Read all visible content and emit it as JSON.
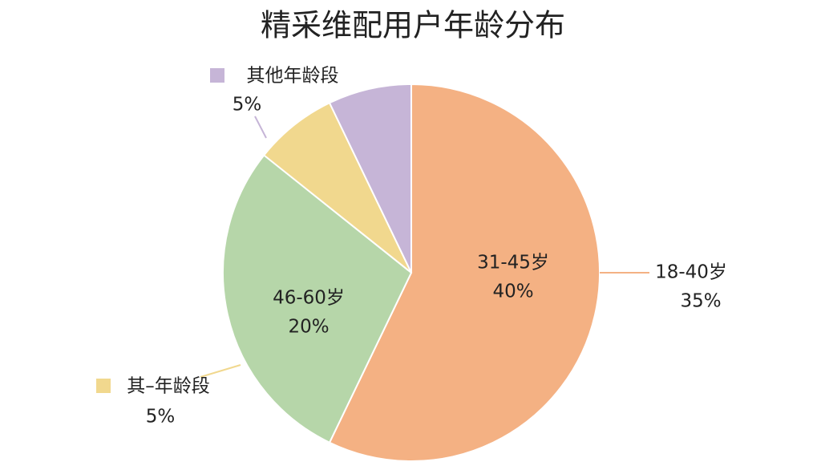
{
  "chart_data": {
    "type": "pie",
    "title": "精采维配用户年龄分布",
    "categories": [
      "31-45岁",
      "46-60岁",
      "其–年龄段",
      "其他年龄段"
    ],
    "values": [
      40,
      20,
      5,
      5
    ],
    "value_labels": [
      "40%",
      "20%",
      "5%",
      "5%"
    ],
    "colors": [
      "#f4b183",
      "#b6d6a9",
      "#f1d88e",
      "#c6b5d7"
    ],
    "annotations": [
      {
        "label": "18-40岁",
        "value": 35,
        "value_label": "35%"
      }
    ]
  }
}
